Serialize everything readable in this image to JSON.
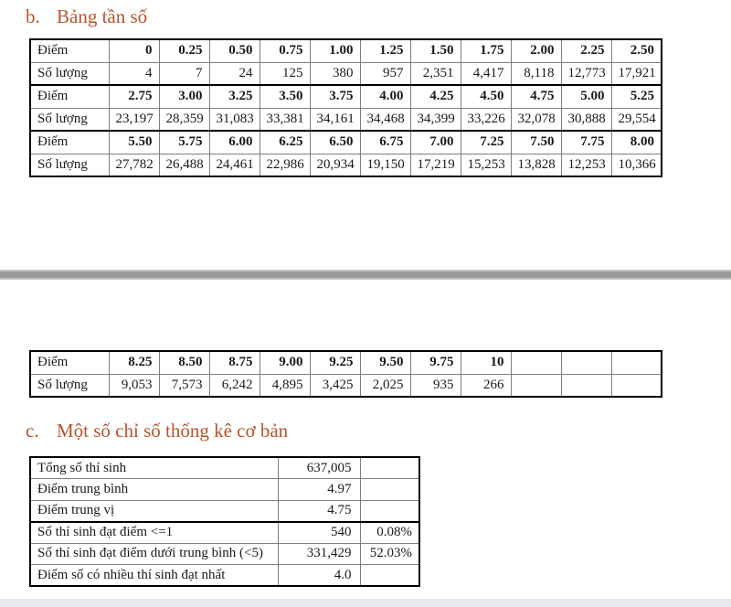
{
  "headings": {
    "b": {
      "marker": "b.",
      "title": "Bảng tần số"
    },
    "c": {
      "marker": "c.",
      "title": "Một số chỉ số thống kê cơ bản"
    }
  },
  "freq_table": {
    "row_labels": {
      "score": "Điểm",
      "count": "Số lượng"
    },
    "page1_pairs": [
      {
        "scores": [
          "0",
          "0.25",
          "0.50",
          "0.75",
          "1.00",
          "1.25",
          "1.50",
          "1.75",
          "2.00",
          "2.25",
          "2.50"
        ],
        "counts": [
          "4",
          "7",
          "24",
          "125",
          "380",
          "957",
          "2,351",
          "4,417",
          "8,118",
          "12,773",
          "17,921"
        ]
      },
      {
        "scores": [
          "2.75",
          "3.00",
          "3.25",
          "3.50",
          "3.75",
          "4.00",
          "4.25",
          "4.50",
          "4.75",
          "5.00",
          "5.25"
        ],
        "counts": [
          "23,197",
          "28,359",
          "31,083",
          "33,381",
          "34,161",
          "34,468",
          "34,399",
          "33,226",
          "32,078",
          "30,888",
          "29,554"
        ]
      },
      {
        "scores": [
          "5.50",
          "5.75",
          "6.00",
          "6.25",
          "6.50",
          "6.75",
          "7.00",
          "7.25",
          "7.50",
          "7.75",
          "8.00"
        ],
        "counts": [
          "27,782",
          "26,488",
          "24,461",
          "22,986",
          "20,934",
          "19,150",
          "17,219",
          "15,253",
          "13,828",
          "12,253",
          "10,366"
        ]
      }
    ],
    "page2_pairs": [
      {
        "scores": [
          "8.25",
          "8.50",
          "8.75",
          "9.00",
          "9.25",
          "9.50",
          "9.75",
          "10",
          "",
          "",
          ""
        ],
        "counts": [
          "9,053",
          "7,573",
          "6,242",
          "4,895",
          "3,425",
          "2,025",
          "935",
          "266",
          "",
          "",
          ""
        ]
      }
    ]
  },
  "stats_table": {
    "rows": [
      {
        "label": "Tổng số thí sinh",
        "value": "637,005",
        "percent": ""
      },
      {
        "label": "Điểm trung bình",
        "value": "4.97",
        "percent": ""
      },
      {
        "label": "Điểm trung vị",
        "value": "4.75",
        "percent": ""
      },
      {
        "label": "Số thí sinh đạt điểm <=1",
        "value": "540",
        "percent": "0.08%"
      },
      {
        "label": "Số thí sinh đạt điểm dưới trung bình (<5)",
        "value": "331,429",
        "percent": "52.03%"
      },
      {
        "label": "Điểm số có nhiều thí sinh đạt nhất",
        "value": "4.0",
        "percent": ""
      }
    ]
  },
  "colors": {
    "heading": "#b9542b",
    "border_heavy": "#000000",
    "border_light": "#7f7f7f",
    "divider": "#9a9a9a",
    "bottom_band": "#e8e9ed"
  }
}
